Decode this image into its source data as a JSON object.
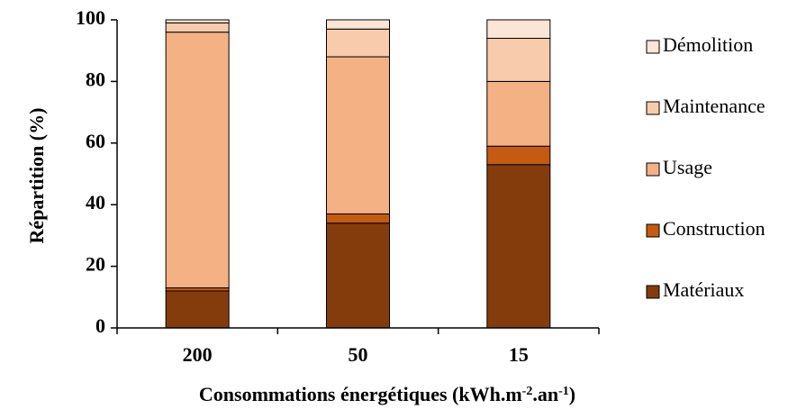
{
  "chart_data": {
    "type": "bar",
    "stacked": true,
    "categories": [
      "200",
      "50",
      "15"
    ],
    "series": [
      {
        "name": "Matériaux",
        "values": [
          12,
          34,
          53
        ],
        "color": "#843C0C"
      },
      {
        "name": "Construction",
        "values": [
          1,
          3,
          6
        ],
        "color": "#C55A11"
      },
      {
        "name": "Usage",
        "values": [
          83,
          51,
          21
        ],
        "color": "#F4B183"
      },
      {
        "name": "Maintenance",
        "values": [
          3,
          9,
          14
        ],
        "color": "#F8CBAD"
      },
      {
        "name": "Démolition",
        "values": [
          1,
          3,
          6
        ],
        "color": "#FBE5D6"
      }
    ],
    "ylabel": "Répartition (%)",
    "xlabel": {
      "main": "Consommations énergétiques (kWh.m",
      "sup1": "-2",
      "mid": ".an",
      "sup2": "-1",
      "end": ")"
    },
    "ylim": [
      0,
      100
    ],
    "yticks": [
      0,
      20,
      40,
      60,
      80,
      100
    ],
    "legend_position": "right",
    "grid": false
  }
}
